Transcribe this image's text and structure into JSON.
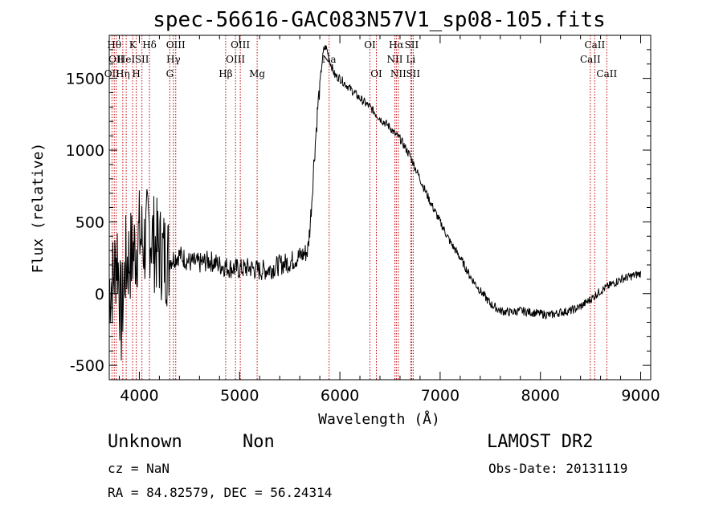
{
  "chart_data": {
    "type": "line",
    "title": "spec-56616-GAC083N57V1_sp08-105.fits",
    "xlabel": "Wavelength (Å)",
    "ylabel": "Flux (relative)",
    "xlim": [
      3700,
      9100
    ],
    "ylim": [
      -600,
      1800
    ],
    "xticks": [
      "4000",
      "5000",
      "6000",
      "7000",
      "8000",
      "9000"
    ],
    "yticks": [
      "-500",
      "0",
      "500",
      "1000",
      "1500"
    ],
    "series": [
      {
        "name": "spectrum",
        "x": [
          3700,
          3740,
          3780,
          3820,
          3860,
          3900,
          3950,
          4000,
          4050,
          4100,
          4150,
          4200,
          4300,
          4400,
          4500,
          4600,
          4700,
          4800,
          4900,
          5000,
          5100,
          5200,
          5300,
          5400,
          5500,
          5600,
          5650,
          5680,
          5700,
          5720,
          5740,
          5760,
          5780,
          5800,
          5820,
          5840,
          5860,
          5880,
          5900,
          5950,
          6000,
          6100,
          6200,
          6300,
          6400,
          6500,
          6550,
          6600,
          6700,
          6800,
          6900,
          7000,
          7100,
          7200,
          7300,
          7400,
          7500,
          7600,
          7700,
          7800,
          7900,
          8000,
          8100,
          8200,
          8300,
          8400,
          8500,
          8600,
          8700,
          8800,
          8900,
          9000
        ],
        "values": [
          50,
          100,
          300,
          -200,
          200,
          250,
          300,
          400,
          350,
          450,
          350,
          300,
          230,
          270,
          220,
          210,
          230,
          200,
          180,
          170,
          180,
          160,
          170,
          200,
          220,
          260,
          280,
          300,
          450,
          650,
          900,
          1100,
          1300,
          1450,
          1600,
          1700,
          1720,
          1680,
          1620,
          1520,
          1500,
          1430,
          1360,
          1300,
          1220,
          1160,
          1110,
          1080,
          960,
          800,
          640,
          500,
          360,
          250,
          120,
          20,
          -70,
          -120,
          -130,
          -120,
          -130,
          -140,
          -150,
          -130,
          -120,
          -90,
          -40,
          20,
          60,
          100,
          120,
          140
        ]
      }
    ],
    "lines": [
      {
        "w": 3727,
        "label": "OII",
        "row": 2
      },
      {
        "w": 3750,
        "label": "Hθ",
        "row": 0
      },
      {
        "w": 3770,
        "label": "OII",
        "row": 1
      },
      {
        "w": 3835,
        "label": "Hη",
        "row": 2
      },
      {
        "w": 3869,
        "label": "HeI",
        "row": 1
      },
      {
        "w": 3934,
        "label": "K",
        "row": 0
      },
      {
        "w": 3969,
        "label": "H",
        "row": 2
      },
      {
        "w": 4026,
        "label": "SII",
        "row": 1
      },
      {
        "w": 4101,
        "label": "Hδ",
        "row": 0
      },
      {
        "w": 4304,
        "label": "G",
        "row": 2
      },
      {
        "w": 4340,
        "label": "Hγ",
        "row": 1
      },
      {
        "w": 4363,
        "label": "OIII",
        "row": 0
      },
      {
        "w": 4861,
        "label": "Hβ",
        "row": 2
      },
      {
        "w": 4959,
        "label": "OIII",
        "row": 1
      },
      {
        "w": 5007,
        "label": "OIII",
        "row": 0
      },
      {
        "w": 5175,
        "label": "Mg",
        "row": 2
      },
      {
        "w": 5893,
        "label": "Na",
        "row": 1
      },
      {
        "w": 6300,
        "label": "OI",
        "row": 0
      },
      {
        "w": 6364,
        "label": "OI",
        "row": 2
      },
      {
        "w": 6548,
        "label": "NII",
        "row": 1
      },
      {
        "w": 6563,
        "label": "Hα",
        "row": 0
      },
      {
        "w": 6583,
        "label": "NII",
        "row": 2
      },
      {
        "w": 6707,
        "label": "Li",
        "row": 1
      },
      {
        "w": 6716,
        "label": "SII",
        "row": 0
      },
      {
        "w": 6731,
        "label": "SII",
        "row": 2
      },
      {
        "w": 8498,
        "label": "CaII",
        "row": 1
      },
      {
        "w": 8542,
        "label": "CaII",
        "row": 0
      },
      {
        "w": 8662,
        "label": "CaII",
        "row": 2
      }
    ]
  },
  "info": {
    "classification": "Unknown",
    "subclass": "Non",
    "survey": "LAMOST DR2",
    "cz": "cz = NaN",
    "obs_date": "Obs-Date: 20131119",
    "radec": "RA =  84.82579, DEC =  56.24314"
  },
  "colors": {
    "line_markers": "#c00000",
    "spectrum": "#000000"
  }
}
